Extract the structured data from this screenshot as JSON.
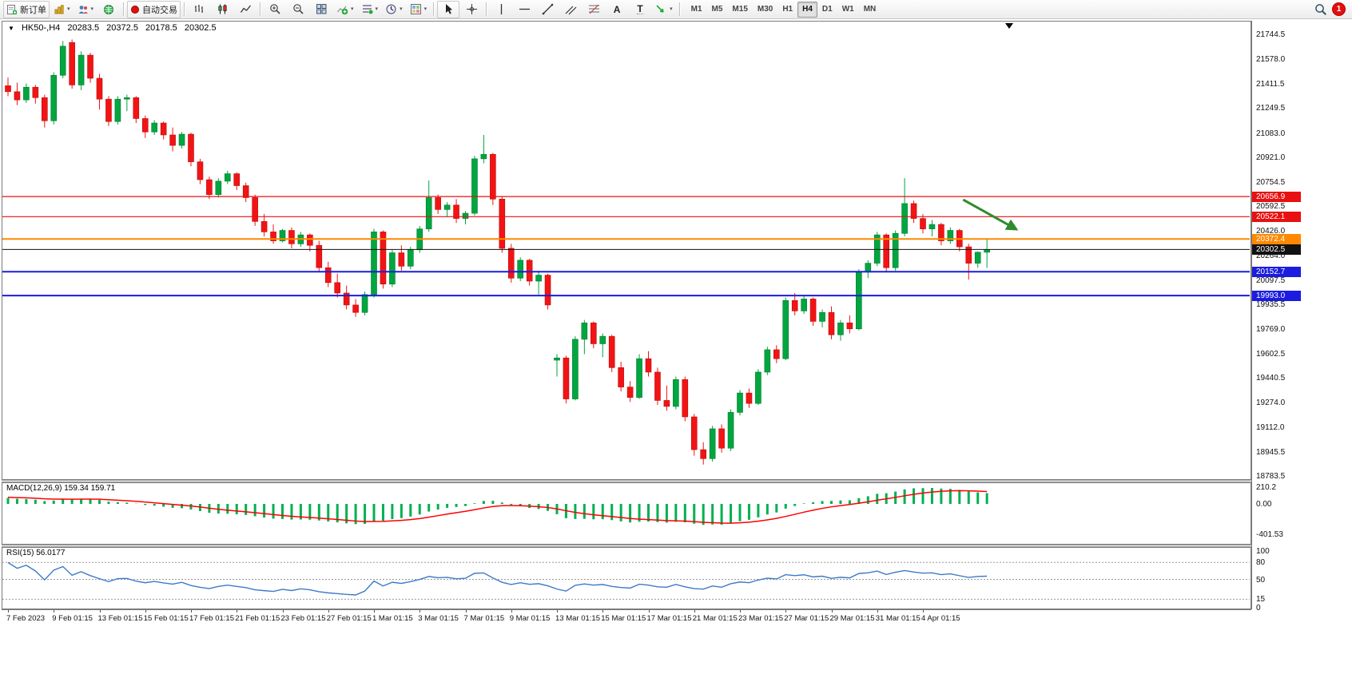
{
  "toolbar": {
    "new_order_label": "新订单",
    "autotrading_label": "自动交易",
    "timeframes": [
      "M1",
      "M5",
      "M15",
      "M30",
      "H1",
      "H4",
      "D1",
      "W1",
      "MN"
    ],
    "active_timeframe": "H4",
    "notification_count": "1",
    "text_tool_label": "A",
    "label_tool_label": "T"
  },
  "chart_header": {
    "symbol_period": "HK50-,H4",
    "open": "20283.5",
    "high": "20372.5",
    "low": "20178.5",
    "close": "20302.5"
  },
  "price_axis": [
    "21744.5",
    "21578.0",
    "21411.5",
    "21249.5",
    "21083.0",
    "20921.0",
    "20754.5",
    "20592.5",
    "20426.0",
    "20264.0",
    "20097.5",
    "19935.5",
    "19769.0",
    "19602.5",
    "19440.5",
    "19274.0",
    "19112.0",
    "18945.5",
    "18783.5"
  ],
  "time_axis": [
    "7 Feb 2023",
    "9 Feb 01:15",
    "13 Feb 01:15",
    "15 Feb 01:15",
    "17 Feb 01:15",
    "21 Feb 01:15",
    "23 Feb 01:15",
    "27 Feb 01:15",
    "1 Mar 01:15",
    "3 Mar 01:15",
    "7 Mar 01:15",
    "9 Mar 01:15",
    "13 Mar 01:15",
    "15 Mar 01:15",
    "17 Mar 01:15",
    "21 Mar 01:15",
    "23 Mar 01:15",
    "27 Mar 01:15",
    "29 Mar 01:15",
    "31 Mar 01:15",
    "4 Apr 01:15"
  ],
  "hlines": [
    {
      "price": 20656.9,
      "label": "20656.9",
      "color": "#e81010",
      "width": 1.2
    },
    {
      "price": 20522.1,
      "label": "20522.1",
      "color": "#e81010",
      "width": 1.2
    },
    {
      "price": 20372.4,
      "label": "20372.4",
      "color": "#ff8800",
      "width": 2
    },
    {
      "price": 20302.5,
      "label": "20302.5",
      "color": "#111111",
      "width": 1
    },
    {
      "price": 20152.7,
      "label": "20152.7",
      "color": "#1c1ce0",
      "width": 2
    },
    {
      "price": 19993.0,
      "label": "19993.0",
      "color": "#1c1ce0",
      "width": 2
    }
  ],
  "macd_panel": {
    "label": "MACD(12,26,9) 159.34 159.71",
    "scale_max": "210.2",
    "scale_zero": "0.00",
    "scale_min": "-401.53"
  },
  "rsi_panel": {
    "label": "RSI(15) 56.0177",
    "scale_labels": [
      "100",
      "80",
      "50",
      "15",
      "0"
    ],
    "level_lines": [
      80,
      50,
      15
    ]
  },
  "chart_data": {
    "type": "candlestick",
    "symbol": "HK50-",
    "period": "H4",
    "price_range": [
      18783.5,
      21744.5
    ],
    "colors": {
      "up": "#00a63f",
      "down": "#f21414",
      "macd_histogram": "#00b050",
      "macd_signal": "#ff0000",
      "rsi_line": "#3d7ac7",
      "annotation": "#2e8b2e"
    },
    "candles": [
      [
        21400,
        21455,
        21330,
        21360
      ],
      [
        21360,
        21420,
        21270,
        21305
      ],
      [
        21305,
        21415,
        21285,
        21390
      ],
      [
        21390,
        21405,
        21280,
        21320
      ],
      [
        21320,
        21340,
        21120,
        21165
      ],
      [
        21165,
        21490,
        21140,
        21470
      ],
      [
        21470,
        21700,
        21450,
        21665
      ],
      [
        21690,
        21710,
        21380,
        21405
      ],
      [
        21405,
        21630,
        21370,
        21605
      ],
      [
        21605,
        21620,
        21420,
        21450
      ],
      [
        21450,
        21480,
        21240,
        21310
      ],
      [
        21310,
        21330,
        21130,
        21160
      ],
      [
        21160,
        21330,
        21140,
        21310
      ],
      [
        21310,
        21340,
        21230,
        21320
      ],
      [
        21320,
        21330,
        21150,
        21180
      ],
      [
        21180,
        21200,
        21050,
        21090
      ],
      [
        21090,
        21170,
        21070,
        21150
      ],
      [
        21150,
        21160,
        21040,
        21070
      ],
      [
        21070,
        21120,
        20960,
        21000
      ],
      [
        21000,
        21090,
        20980,
        21075
      ],
      [
        21075,
        21085,
        20860,
        20890
      ],
      [
        20890,
        20910,
        20740,
        20770
      ],
      [
        20770,
        20790,
        20640,
        20670
      ],
      [
        20670,
        20780,
        20650,
        20760
      ],
      [
        20760,
        20830,
        20740,
        20810
      ],
      [
        20810,
        20820,
        20700,
        20730
      ],
      [
        20730,
        20750,
        20620,
        20650
      ],
      [
        20650,
        20670,
        20460,
        20490
      ],
      [
        20490,
        20540,
        20390,
        20420
      ],
      [
        20420,
        20470,
        20340,
        20360
      ],
      [
        20360,
        20440,
        20350,
        20430
      ],
      [
        20430,
        20450,
        20310,
        20340
      ],
      [
        20340,
        20420,
        20320,
        20400
      ],
      [
        20400,
        20410,
        20290,
        20330
      ],
      [
        20330,
        20360,
        20150,
        20180
      ],
      [
        20180,
        20220,
        20050,
        20080
      ],
      [
        20080,
        20140,
        19980,
        20010
      ],
      [
        20010,
        20060,
        19900,
        19930
      ],
      [
        19930,
        19970,
        19850,
        19880
      ],
      [
        19880,
        20020,
        19860,
        20000
      ],
      [
        20000,
        20440,
        19980,
        20420
      ],
      [
        20420,
        20430,
        20040,
        20070
      ],
      [
        20070,
        20300,
        20050,
        20280
      ],
      [
        20280,
        20330,
        20160,
        20190
      ],
      [
        20190,
        20320,
        20170,
        20300
      ],
      [
        20300,
        20460,
        20280,
        20440
      ],
      [
        20440,
        20765,
        20420,
        20650
      ],
      [
        20650,
        20670,
        20540,
        20570
      ],
      [
        20570,
        20620,
        20520,
        20600
      ],
      [
        20600,
        20640,
        20480,
        20510
      ],
      [
        20510,
        20560,
        20470,
        20545
      ],
      [
        20545,
        20930,
        20530,
        20910
      ],
      [
        20910,
        21070,
        20880,
        20940
      ],
      [
        20940,
        20950,
        20600,
        20640
      ],
      [
        20640,
        20660,
        20280,
        20310
      ],
      [
        20310,
        20340,
        20080,
        20110
      ],
      [
        20110,
        20250,
        20090,
        20230
      ],
      [
        20230,
        20240,
        20060,
        20090
      ],
      [
        20090,
        20160,
        20000,
        20130
      ],
      [
        20130,
        20140,
        19900,
        19930
      ],
      [
        19560,
        19600,
        19450,
        19575
      ],
      [
        19575,
        19590,
        19270,
        19300
      ],
      [
        19300,
        19720,
        19290,
        19700
      ],
      [
        19700,
        19830,
        19600,
        19810
      ],
      [
        19810,
        19820,
        19640,
        19670
      ],
      [
        19670,
        19740,
        19580,
        19720
      ],
      [
        19720,
        19730,
        19480,
        19510
      ],
      [
        19510,
        19550,
        19350,
        19380
      ],
      [
        19380,
        19420,
        19280,
        19310
      ],
      [
        19310,
        19600,
        19300,
        19570
      ],
      [
        19570,
        19620,
        19450,
        19480
      ],
      [
        19480,
        19510,
        19260,
        19290
      ],
      [
        19290,
        19390,
        19220,
        19250
      ],
      [
        19250,
        19450,
        19230,
        19430
      ],
      [
        19430,
        19450,
        19150,
        19180
      ],
      [
        19180,
        19200,
        18920,
        18960
      ],
      [
        18960,
        19010,
        18860,
        18900
      ],
      [
        18900,
        19120,
        18880,
        19100
      ],
      [
        19100,
        19130,
        18940,
        18970
      ],
      [
        18970,
        19230,
        18950,
        19210
      ],
      [
        19210,
        19360,
        19190,
        19340
      ],
      [
        19340,
        19370,
        19240,
        19270
      ],
      [
        19270,
        19500,
        19260,
        19480
      ],
      [
        19480,
        19650,
        19460,
        19630
      ],
      [
        19630,
        19660,
        19540,
        19570
      ],
      [
        19570,
        19980,
        19560,
        19960
      ],
      [
        19960,
        20010,
        19860,
        19890
      ],
      [
        19890,
        19990,
        19870,
        19970
      ],
      [
        19970,
        19980,
        19790,
        19820
      ],
      [
        19820,
        19900,
        19780,
        19880
      ],
      [
        19880,
        19920,
        19700,
        19730
      ],
      [
        19730,
        19830,
        19690,
        19810
      ],
      [
        19810,
        19860,
        19740,
        19770
      ],
      [
        19770,
        20170,
        19760,
        20150
      ],
      [
        20150,
        20230,
        20110,
        20210
      ],
      [
        20210,
        20420,
        20190,
        20400
      ],
      [
        20400,
        20410,
        20150,
        20180
      ],
      [
        20180,
        20430,
        20160,
        20410
      ],
      [
        20410,
        20780,
        20390,
        20610
      ],
      [
        20610,
        20630,
        20480,
        20510
      ],
      [
        20510,
        20540,
        20410,
        20440
      ],
      [
        20440,
        20500,
        20390,
        20470
      ],
      [
        20470,
        20480,
        20330,
        20360
      ],
      [
        20360,
        20450,
        20340,
        20430
      ],
      [
        20430,
        20440,
        20290,
        20320
      ],
      [
        20320,
        20340,
        20100,
        20210
      ],
      [
        20210,
        20290,
        20180,
        20283.5
      ],
      [
        20283.5,
        20372.5,
        20178.5,
        20302.5
      ]
    ],
    "indicators": {
      "macd": {
        "params": [
          12,
          26,
          9
        ],
        "current_main": 159.34,
        "current_signal": 159.71,
        "range": [
          -401.53,
          210.2
        ]
      },
      "rsi": {
        "params": [
          15
        ],
        "current": 56.0177,
        "levels": [
          80,
          50,
          15
        ]
      }
    },
    "annotations": [
      {
        "type": "arrow",
        "color": "#2e8b2e",
        "from": {
          "index": 104.4,
          "price": 20636
        },
        "to": {
          "index": 110.2,
          "price": 20438
        }
      }
    ]
  }
}
